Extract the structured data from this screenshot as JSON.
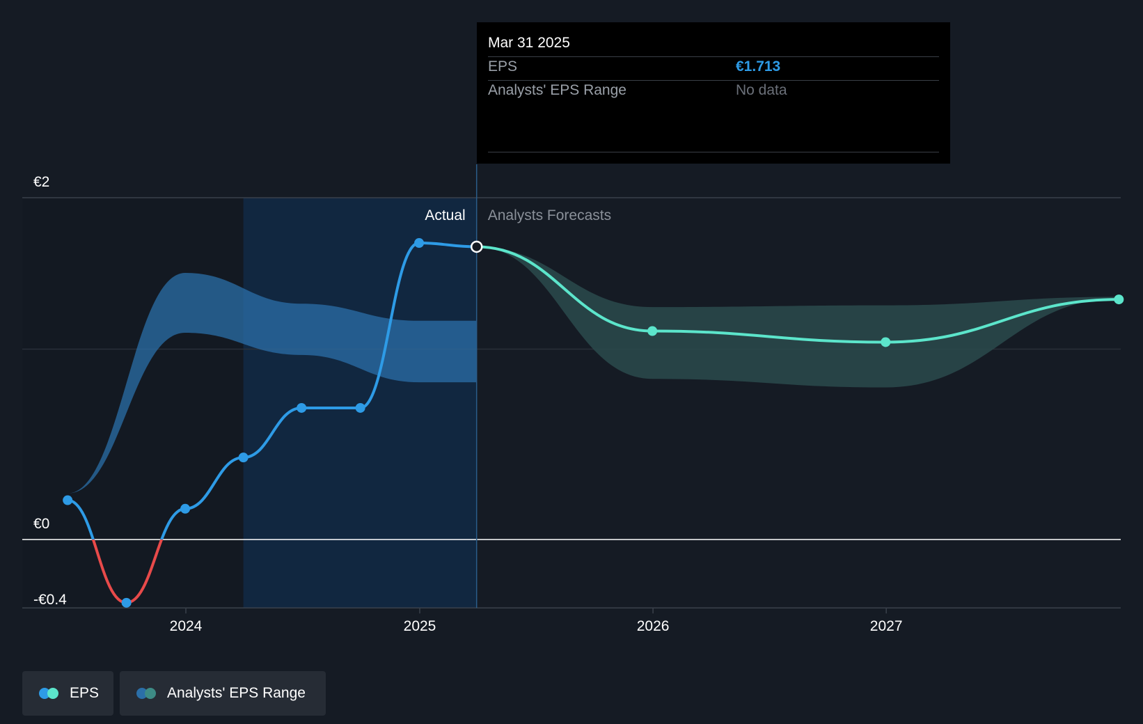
{
  "tooltip": {
    "date": "Mar 31 2025",
    "eps_label": "EPS",
    "eps_value": "€1.713",
    "range_label": "Analysts' EPS Range",
    "range_value": "No data"
  },
  "legend": {
    "eps_label": "EPS",
    "range_label": "Analysts' EPS Range"
  },
  "colors": {
    "background": "#151b24",
    "actual_line": "#2e9be6",
    "negative_line": "#e84a4a",
    "forecast_line": "#5ce5cb",
    "actual_band": "#2b6fa8",
    "forecast_band": "#2a4a4c",
    "past_region": "#112740"
  },
  "chart_data": {
    "type": "line",
    "y_unit": "€",
    "y_ticks": [
      {
        "value": 2,
        "label": "€2"
      },
      {
        "value": 0,
        "label": "€0"
      },
      {
        "value": -0.4,
        "label": "-€0.4"
      }
    ],
    "x_ticks": [
      "2024",
      "2025",
      "2026",
      "2027"
    ],
    "ylim": [
      -0.4,
      2.0
    ],
    "split_labels": {
      "actual": "Actual",
      "forecast": "Analysts Forecasts"
    },
    "series": [
      {
        "name": "EPS",
        "kind": "actual",
        "points": [
          {
            "date": "2023-06-30",
            "value": 0.23
          },
          {
            "date": "2023-09-30",
            "value": -0.37
          },
          {
            "date": "2023-12-31",
            "value": 0.18
          },
          {
            "date": "2024-03-31",
            "value": 0.48
          },
          {
            "date": "2024-06-30",
            "value": 0.77
          },
          {
            "date": "2024-09-30",
            "value": 0.77
          },
          {
            "date": "2024-12-31",
            "value": 1.735
          },
          {
            "date": "2025-03-31",
            "value": 1.713
          }
        ]
      },
      {
        "name": "EPS",
        "kind": "forecast",
        "points": [
          {
            "date": "2025-03-31",
            "value": 1.713
          },
          {
            "date": "2025-12-31",
            "value": 1.22
          },
          {
            "date": "2026-12-31",
            "value": 1.155
          },
          {
            "date": "2027-12-31",
            "value": 1.405
          }
        ]
      }
    ],
    "ranges": [
      {
        "name": "Analysts' EPS Range",
        "kind": "past",
        "points": [
          {
            "date": "2023-06-30",
            "low": 0.27,
            "high": 0.27
          },
          {
            "date": "2023-12-31",
            "low": 1.21,
            "high": 1.56
          },
          {
            "date": "2024-06-30",
            "low": 1.08,
            "high": 1.38
          },
          {
            "date": "2024-12-31",
            "low": 0.92,
            "high": 1.28
          },
          {
            "date": "2025-03-31",
            "low": 0.92,
            "high": 1.28
          }
        ]
      },
      {
        "name": "Analysts' EPS Range",
        "kind": "forecast",
        "points": [
          {
            "date": "2025-03-31",
            "low": 1.713,
            "high": 1.713
          },
          {
            "date": "2025-12-31",
            "low": 0.94,
            "high": 1.36
          },
          {
            "date": "2026-12-31",
            "low": 0.89,
            "high": 1.37
          },
          {
            "date": "2027-12-31",
            "low": 1.41,
            "high": 1.42
          }
        ]
      }
    ]
  }
}
